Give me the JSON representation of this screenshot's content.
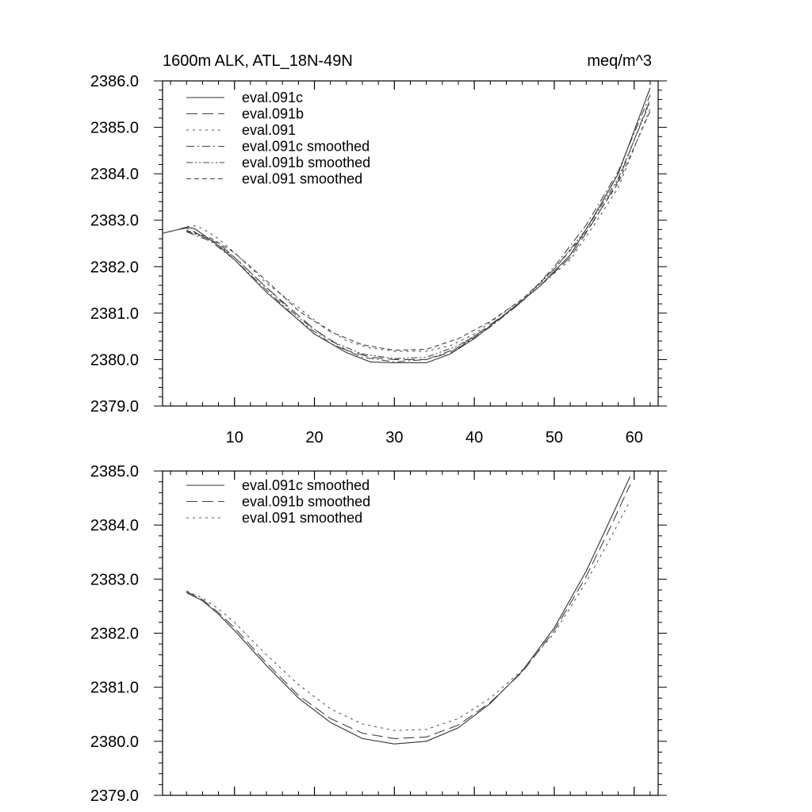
{
  "chart_data": [
    {
      "type": "line",
      "title": "1600m ALK, ATL_18N-49N",
      "units": "meq/m^3",
      "xlim": [
        1,
        63
      ],
      "ylim": [
        2379.0,
        2386.0
      ],
      "yticks": [
        2379.0,
        2380.0,
        2381.0,
        2382.0,
        2383.0,
        2384.0,
        2385.0,
        2386.0
      ],
      "ytick_labels": [
        "2379.0",
        "2380.0",
        "2381.0",
        "2382.0",
        "2383.0",
        "2384.0",
        "2385.0",
        "2386.0"
      ],
      "xticks": [
        10,
        20,
        30,
        40,
        50,
        60
      ],
      "xtick_labels": [
        "10",
        "20",
        "30",
        "40",
        "50",
        "60"
      ],
      "series": [
        {
          "name": "eval.091c",
          "style": "solid",
          "x": [
            1,
            3,
            4,
            5,
            6,
            8,
            10,
            14,
            20,
            24,
            27,
            30,
            34,
            37,
            40,
            44,
            48,
            52,
            55,
            58,
            62
          ],
          "y": [
            2382.72,
            2382.8,
            2382.85,
            2382.82,
            2382.7,
            2382.45,
            2382.15,
            2381.45,
            2380.55,
            2380.15,
            2379.95,
            2379.93,
            2379.93,
            2380.12,
            2380.45,
            2381.0,
            2381.55,
            2382.25,
            2383.1,
            2384.0,
            2385.85
          ]
        },
        {
          "name": "eval.091b",
          "style": "longdash",
          "x": [
            1,
            3,
            4,
            5,
            6,
            8,
            10,
            14,
            20,
            24,
            27,
            30,
            34,
            37,
            40,
            44,
            48,
            52,
            55,
            58,
            62
          ],
          "y": [
            2382.72,
            2382.8,
            2382.83,
            2382.75,
            2382.65,
            2382.5,
            2382.2,
            2381.55,
            2380.65,
            2380.2,
            2380.05,
            2380.0,
            2380.0,
            2380.15,
            2380.5,
            2381.0,
            2381.55,
            2382.2,
            2383.0,
            2383.85,
            2385.6
          ]
        },
        {
          "name": "eval.091",
          "style": "dotted",
          "x": [
            1,
            3,
            4,
            5,
            6,
            8,
            10,
            14,
            20,
            24,
            27,
            30,
            34,
            37,
            40,
            44,
            48,
            52,
            55,
            58,
            62
          ],
          "y": [
            2382.72,
            2382.8,
            2382.86,
            2382.88,
            2382.82,
            2382.6,
            2382.3,
            2381.65,
            2380.85,
            2380.4,
            2380.25,
            2380.18,
            2380.18,
            2380.3,
            2380.55,
            2381.05,
            2381.55,
            2382.15,
            2382.9,
            2383.7,
            2385.4
          ]
        },
        {
          "name": "eval.091c smoothed",
          "style": "dashdot",
          "x": [
            4,
            7,
            10,
            14,
            18,
            22,
            26,
            30,
            34,
            38,
            42,
            46,
            50,
            54,
            58,
            62
          ],
          "y": [
            2382.75,
            2382.55,
            2382.15,
            2381.5,
            2380.85,
            2380.35,
            2380.05,
            2379.95,
            2380.0,
            2380.25,
            2380.7,
            2381.25,
            2382.0,
            2382.9,
            2384.05,
            2385.7
          ]
        },
        {
          "name": "eval.091b smoothed",
          "style": "dashdotdot",
          "x": [
            4,
            7,
            10,
            14,
            18,
            22,
            26,
            30,
            34,
            38,
            42,
            46,
            50,
            54,
            58,
            62
          ],
          "y": [
            2382.77,
            2382.58,
            2382.2,
            2381.55,
            2380.9,
            2380.4,
            2380.12,
            2380.02,
            2380.05,
            2380.3,
            2380.72,
            2381.25,
            2381.95,
            2382.8,
            2383.9,
            2385.55
          ]
        },
        {
          "name": "eval.091 smoothed",
          "style": "shortdash",
          "x": [
            4,
            7,
            10,
            14,
            18,
            22,
            26,
            30,
            34,
            38,
            42,
            46,
            50,
            54,
            58,
            62
          ],
          "y": [
            2382.78,
            2382.62,
            2382.3,
            2381.7,
            2381.05,
            2380.6,
            2380.32,
            2380.2,
            2380.22,
            2380.45,
            2380.82,
            2381.3,
            2381.95,
            2382.75,
            2383.8,
            2385.35
          ]
        }
      ]
    },
    {
      "type": "line",
      "title": "",
      "xlim": [
        1,
        63
      ],
      "ylim": [
        2379.0,
        2385.0
      ],
      "yticks": [
        2379.0,
        2380.0,
        2381.0,
        2382.0,
        2383.0,
        2384.0,
        2385.0
      ],
      "ytick_labels": [
        "2379.0",
        "2380.0",
        "2381.0",
        "2382.0",
        "2383.0",
        "2384.0",
        "2385.0"
      ],
      "xticks": [
        10,
        20,
        30,
        40,
        50,
        60
      ],
      "xtick_labels": [],
      "series": [
        {
          "name": "eval.091c smoothed",
          "style": "solid",
          "x": [
            4,
            6,
            8,
            10,
            14,
            18,
            22,
            26,
            30,
            34,
            38,
            42,
            46,
            50,
            54,
            57,
            59.5
          ],
          "y": [
            2382.75,
            2382.6,
            2382.35,
            2382.05,
            2381.4,
            2380.8,
            2380.35,
            2380.05,
            2379.95,
            2380.0,
            2380.25,
            2380.7,
            2381.3,
            2382.1,
            2383.15,
            2384.1,
            2384.9
          ]
        },
        {
          "name": "eval.091b smoothed",
          "style": "longdash",
          "x": [
            4,
            6,
            8,
            10,
            14,
            18,
            22,
            26,
            30,
            34,
            38,
            42,
            46,
            50,
            54,
            57,
            59.5
          ],
          "y": [
            2382.77,
            2382.62,
            2382.38,
            2382.1,
            2381.45,
            2380.85,
            2380.42,
            2380.15,
            2380.05,
            2380.08,
            2380.3,
            2380.72,
            2381.28,
            2382.05,
            2383.05,
            2383.95,
            2384.75
          ]
        },
        {
          "name": "eval.091 smoothed",
          "style": "dotted",
          "x": [
            4,
            6,
            8,
            10,
            14,
            18,
            22,
            26,
            30,
            34,
            38,
            42,
            46,
            50,
            54,
            57,
            59.5
          ],
          "y": [
            2382.78,
            2382.65,
            2382.45,
            2382.2,
            2381.6,
            2381.05,
            2380.6,
            2380.32,
            2380.2,
            2380.22,
            2380.42,
            2380.8,
            2381.32,
            2382.0,
            2382.95,
            2383.75,
            2384.45
          ]
        }
      ]
    }
  ]
}
